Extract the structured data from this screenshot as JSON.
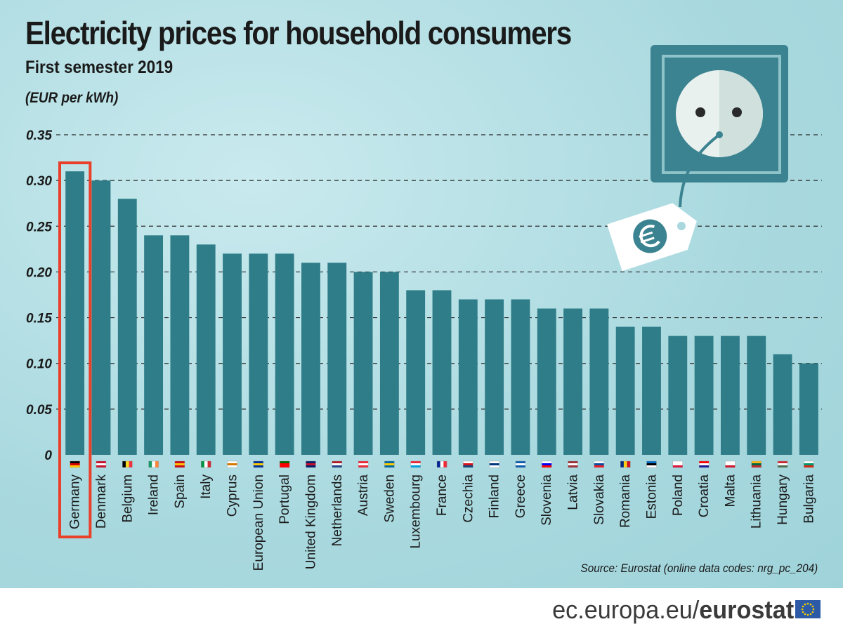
{
  "chart_data": {
    "type": "bar",
    "title": "Electricity prices for household consumers",
    "subtitle": "First semester 2019",
    "ylabel": "(EUR per kWh)",
    "ylim": [
      0,
      0.35
    ],
    "yticks": [
      "0",
      "0.05",
      "0.10",
      "0.15",
      "0.20",
      "0.25",
      "0.30",
      "0.35"
    ],
    "ytick_values": [
      0,
      0.05,
      0.1,
      0.15,
      0.2,
      0.25,
      0.3,
      0.35
    ],
    "grid": "dashed-horizontal",
    "highlight": "Germany",
    "bar_color": "#2f7d88",
    "highlight_color": "#e8402a",
    "categories": [
      "Germany",
      "Denmark",
      "Belgium",
      "Ireland",
      "Spain",
      "Italy",
      "Cyprus",
      "European Union",
      "Portugal",
      "United Kingdom",
      "Netherlands",
      "Austria",
      "Sweden",
      "Luxembourg",
      "France",
      "Czechia",
      "Finland",
      "Greece",
      "Slovenia",
      "Latvia",
      "Slovakia",
      "Romania",
      "Estonia",
      "Poland",
      "Croatia",
      "Malta",
      "Lithuania",
      "Hungary",
      "Bulgaria"
    ],
    "values": [
      0.31,
      0.3,
      0.28,
      0.24,
      0.24,
      0.23,
      0.22,
      0.22,
      0.22,
      0.21,
      0.21,
      0.2,
      0.2,
      0.18,
      0.18,
      0.17,
      0.17,
      0.17,
      0.16,
      0.16,
      0.16,
      0.14,
      0.14,
      0.13,
      0.13,
      0.13,
      0.13,
      0.11,
      0.1
    ],
    "flags": [
      "flag-de",
      "flag-dk",
      "flag-be",
      "flag-ie",
      "flag-es",
      "flag-it",
      "flag-cy",
      "flag-eu",
      "flag-pt",
      "flag-uk",
      "flag-nl",
      "flag-at",
      "flag-se",
      "flag-lu",
      "flag-fr",
      "flag-cz",
      "flag-fi",
      "flag-gr",
      "flag-si",
      "flag-lv",
      "flag-sk",
      "flag-ro",
      "flag-ee",
      "flag-pl",
      "flag-hr",
      "flag-mt",
      "flag-lt",
      "flag-hu",
      "flag-bg"
    ]
  },
  "source": "Source: Eurostat (online data codes: nrg_pc_204)",
  "footer": {
    "domain": "ec.europa.eu/",
    "brand": "eurostat"
  },
  "icons": {
    "socket": "power-socket-icon",
    "price_tag": "euro-price-tag-icon",
    "eu_flag": "eu-flag-icon"
  }
}
